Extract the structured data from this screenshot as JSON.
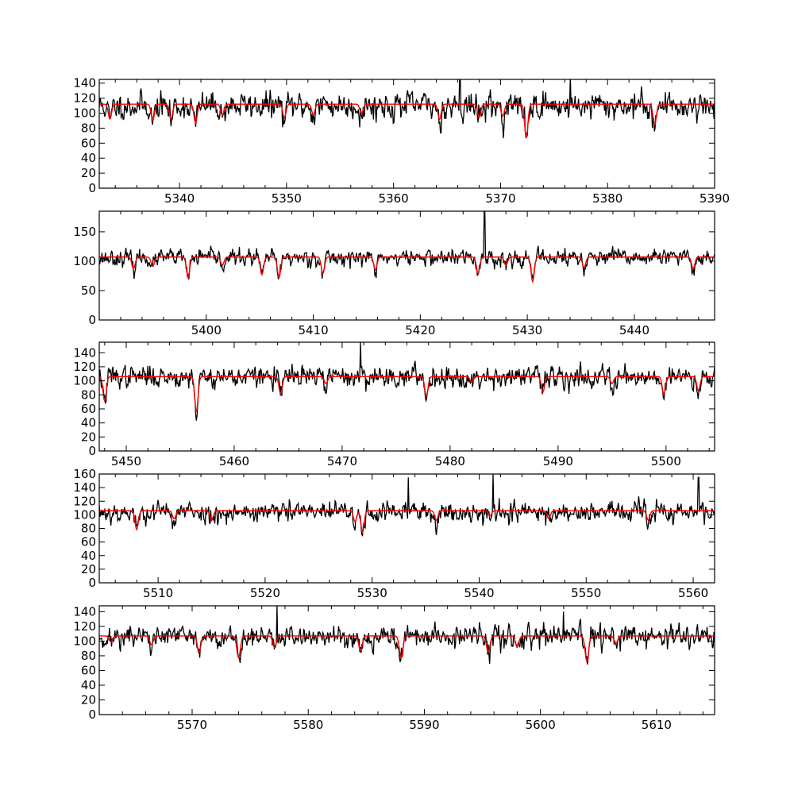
{
  "figure": {
    "background": "#ffffff"
  },
  "colors": {
    "observed": "#000000",
    "model": "#ff0000",
    "axis": "#000000"
  },
  "chart_data": [
    {
      "type": "line",
      "title": "",
      "xlabel": "",
      "ylabel": "",
      "grid": false,
      "xlim": [
        5332.5,
        5390
      ],
      "ylim": [
        0,
        145
      ],
      "xticks": [
        5340,
        5350,
        5360,
        5370,
        5380,
        5390
      ],
      "yticks": [
        0,
        20,
        40,
        60,
        80,
        100,
        120,
        140
      ],
      "xtick_labels": [
        "5340",
        "5350",
        "5360",
        "5370",
        "5380",
        "5390"
      ],
      "ytick_labels": [
        "0",
        "20",
        "40",
        "60",
        "80",
        "100",
        "120",
        "140"
      ],
      "series": [
        {
          "role": "observed",
          "color": "#000000",
          "continuum": 110,
          "noise": 13,
          "seed": 11,
          "spikes": [
            [
              5366.2,
              150
            ],
            [
              5376.5,
              150
            ]
          ]
        },
        {
          "role": "model",
          "color": "#ff0000",
          "continuum": 112,
          "seed": 0,
          "spikes": []
        }
      ],
      "absorption_lines": [
        [
          5333.5,
          20,
          0.3
        ],
        [
          5337.5,
          22,
          0.3
        ],
        [
          5339.2,
          20,
          0.3
        ],
        [
          5341.5,
          25,
          0.3
        ],
        [
          5344.0,
          15,
          0.3
        ],
        [
          5349.8,
          18,
          0.3
        ],
        [
          5352.5,
          14,
          0.3
        ],
        [
          5357.0,
          12,
          0.3
        ],
        [
          5364.3,
          20,
          0.3
        ],
        [
          5368.0,
          18,
          0.3
        ],
        [
          5370.2,
          16,
          0.3
        ],
        [
          5372.4,
          45,
          0.3
        ],
        [
          5384.4,
          28,
          0.3
        ]
      ]
    },
    {
      "type": "line",
      "title": "",
      "xlabel": "",
      "ylabel": "",
      "grid": false,
      "xlim": [
        5390,
        5447.5
      ],
      "ylim": [
        0,
        185
      ],
      "xticks": [
        5400,
        5410,
        5420,
        5430,
        5440
      ],
      "yticks": [
        0,
        50,
        100,
        150
      ],
      "xtick_labels": [
        "5400",
        "5410",
        "5420",
        "5430",
        "5440"
      ],
      "ytick_labels": [
        "0",
        "50",
        "100",
        "150"
      ],
      "series": [
        {
          "role": "observed",
          "color": "#000000",
          "continuum": 106,
          "noise": 10,
          "seed": 23,
          "spikes": [
            [
              5426.0,
              185
            ]
          ]
        },
        {
          "role": "model",
          "color": "#ff0000",
          "continuum": 107,
          "seed": 0,
          "spikes": []
        }
      ],
      "absorption_lines": [
        [
          5393.2,
          20,
          0.3
        ],
        [
          5395.0,
          16,
          0.3
        ],
        [
          5398.3,
          35,
          0.3
        ],
        [
          5401.5,
          14,
          0.3
        ],
        [
          5405.2,
          30,
          0.3
        ],
        [
          5406.8,
          35,
          0.3
        ],
        [
          5410.9,
          28,
          0.3
        ],
        [
          5415.8,
          22,
          0.3
        ],
        [
          5425.4,
          28,
          0.3
        ],
        [
          5428.0,
          14,
          0.3
        ],
        [
          5430.5,
          42,
          0.3
        ],
        [
          5435.3,
          18,
          0.3
        ],
        [
          5445.5,
          20,
          0.3
        ]
      ]
    },
    {
      "type": "line",
      "title": "",
      "xlabel": "",
      "ylabel": "",
      "grid": false,
      "xlim": [
        5447.5,
        5504.5
      ],
      "ylim": [
        0,
        155
      ],
      "xticks": [
        5450,
        5460,
        5470,
        5480,
        5490,
        5500
      ],
      "yticks": [
        0,
        20,
        40,
        60,
        80,
        100,
        120,
        140
      ],
      "xtick_labels": [
        "5450",
        "5460",
        "5470",
        "5480",
        "5490",
        "5500"
      ],
      "ytick_labels": [
        "0",
        "20",
        "40",
        "60",
        "80",
        "100",
        "120",
        "140"
      ],
      "series": [
        {
          "role": "observed",
          "color": "#000000",
          "continuum": 106,
          "noise": 11,
          "seed": 37,
          "spikes": [
            [
              5471.7,
              155
            ]
          ]
        },
        {
          "role": "model",
          "color": "#ff0000",
          "continuum": 106,
          "seed": 0,
          "spikes": []
        }
      ],
      "absorption_lines": [
        [
          5448.0,
          35,
          0.3
        ],
        [
          5456.5,
          50,
          0.3
        ],
        [
          5464.3,
          25,
          0.3
        ],
        [
          5468.5,
          10,
          0.3
        ],
        [
          5477.8,
          28,
          0.3
        ],
        [
          5482.0,
          8,
          0.3
        ],
        [
          5488.6,
          22,
          0.3
        ],
        [
          5495.0,
          10,
          0.3
        ],
        [
          5499.8,
          25,
          0.3
        ],
        [
          5503.0,
          20,
          0.3
        ]
      ]
    },
    {
      "type": "line",
      "title": "",
      "xlabel": "",
      "ylabel": "",
      "grid": false,
      "xlim": [
        5504.5,
        5562
      ],
      "ylim": [
        0,
        160
      ],
      "xticks": [
        5510,
        5520,
        5530,
        5540,
        5550,
        5560
      ],
      "yticks": [
        0,
        20,
        40,
        60,
        80,
        100,
        120,
        140,
        160
      ],
      "xtick_labels": [
        "5510",
        "5520",
        "5530",
        "5540",
        "5550",
        "5560"
      ],
      "ytick_labels": [
        "0",
        "20",
        "40",
        "60",
        "80",
        "100",
        "120",
        "140",
        "160"
      ],
      "series": [
        {
          "role": "observed",
          "color": "#000000",
          "continuum": 104,
          "noise": 11,
          "seed": 53,
          "spikes": [
            [
              5533.4,
              155
            ],
            [
              5541.3,
              160
            ],
            [
              5560.5,
              155
            ]
          ]
        },
        {
          "role": "model",
          "color": "#ff0000",
          "continuum": 106,
          "seed": 0,
          "spikes": []
        }
      ],
      "absorption_lines": [
        [
          5508.0,
          28,
          0.3
        ],
        [
          5511.5,
          12,
          0.3
        ],
        [
          5515.0,
          14,
          0.3
        ],
        [
          5528.4,
          16,
          0.3
        ],
        [
          5529.1,
          32,
          0.3
        ],
        [
          5536.0,
          14,
          0.3
        ],
        [
          5541.0,
          8,
          0.3
        ],
        [
          5546.5,
          12,
          0.3
        ],
        [
          5555.8,
          14,
          0.3
        ]
      ]
    },
    {
      "type": "line",
      "title": "",
      "xlabel": "",
      "ylabel": "",
      "grid": false,
      "xlim": [
        5562,
        5615
      ],
      "ylim": [
        0,
        148
      ],
      "xticks": [
        5570,
        5580,
        5590,
        5600,
        5610
      ],
      "yticks": [
        0,
        20,
        40,
        60,
        80,
        100,
        120,
        140
      ],
      "xtick_labels": [
        "5570",
        "5580",
        "5590",
        "5600",
        "5610"
      ],
      "ytick_labels": [
        "0",
        "20",
        "40",
        "60",
        "80",
        "100",
        "120",
        "140"
      ],
      "series": [
        {
          "role": "observed",
          "color": "#000000",
          "continuum": 106,
          "noise": 11,
          "seed": 71,
          "spikes": [
            [
              5577.3,
              148
            ],
            [
              5602.0,
              140
            ]
          ]
        },
        {
          "role": "model",
          "color": "#ff0000",
          "continuum": 107,
          "seed": 0,
          "spikes": []
        }
      ],
      "absorption_lines": [
        [
          5563.0,
          8,
          0.3
        ],
        [
          5566.5,
          12,
          0.3
        ],
        [
          5570.6,
          22,
          0.3
        ],
        [
          5574.0,
          30,
          0.3
        ],
        [
          5577.1,
          16,
          0.3
        ],
        [
          5584.5,
          20,
          0.3
        ],
        [
          5588.0,
          30,
          0.3
        ],
        [
          5595.5,
          22,
          0.3
        ],
        [
          5598.0,
          14,
          0.3
        ],
        [
          5604.0,
          35,
          0.3
        ],
        [
          5606.5,
          10,
          0.3
        ]
      ]
    }
  ]
}
